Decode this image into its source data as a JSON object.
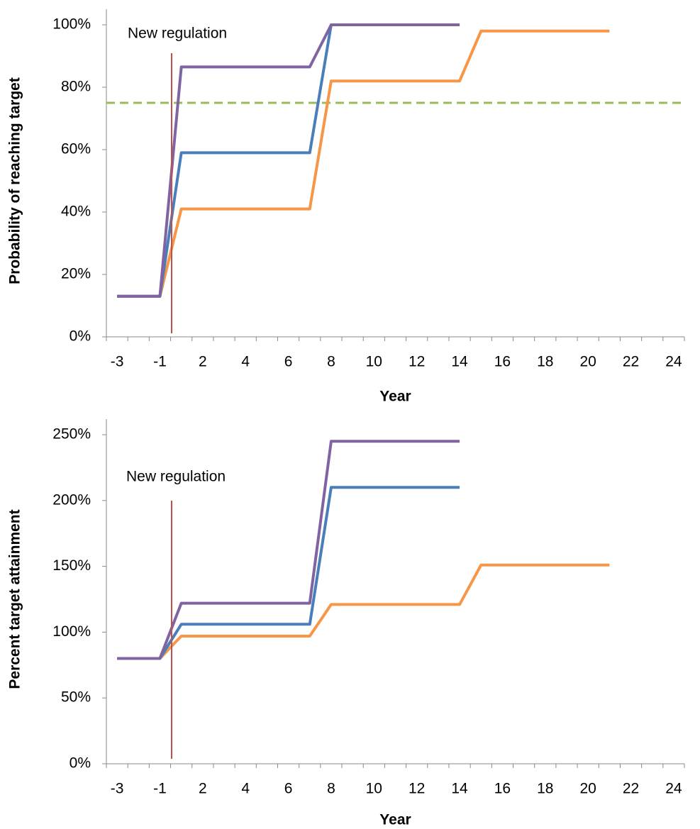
{
  "chart_data": [
    {
      "type": "line",
      "annotation": "New regulation",
      "annotation_color": "#c0504d",
      "x_label": "Year",
      "y_label": "Probability of reaching target",
      "categories": [
        -3,
        null,
        -1,
        null,
        2,
        null,
        4,
        null,
        6,
        null,
        8,
        null,
        10,
        null,
        12,
        null,
        14,
        null,
        16,
        null,
        18,
        null,
        20,
        null,
        22,
        null,
        24
      ],
      "ylim": [
        0,
        100
      ],
      "yticks": [
        {
          "value": 0,
          "label": "0%"
        },
        {
          "value": 20,
          "label": "20%"
        },
        {
          "value": 40,
          "label": "40%"
        },
        {
          "value": 60,
          "label": "60%"
        },
        {
          "value": 80,
          "label": "80%"
        },
        {
          "value": 100,
          "label": "100%"
        }
      ],
      "reference_line": {
        "value": 75,
        "color": "#9bbb59",
        "style": "dashed"
      },
      "series": [
        {
          "color": "#f79646",
          "values": [
            13,
            13,
            13,
            41,
            41,
            41,
            41,
            41,
            41,
            41,
            82,
            82,
            82,
            82,
            82,
            82,
            82,
            98,
            98,
            98,
            98,
            98,
            98,
            98,
            null,
            null,
            null
          ]
        },
        {
          "color": "#4a7ebb",
          "values": [
            13,
            13,
            13,
            59,
            59,
            59,
            59,
            59,
            59,
            59,
            100,
            100,
            100,
            100,
            100,
            100,
            100,
            null,
            null,
            null,
            null,
            null,
            null,
            null,
            null,
            null,
            null
          ]
        },
        {
          "color": "#8064a2",
          "values": [
            13,
            13,
            13,
            86.5,
            86.5,
            86.5,
            86.5,
            86.5,
            86.5,
            86.5,
            100,
            100,
            100,
            100,
            100,
            100,
            100,
            null,
            null,
            null,
            null,
            null,
            null,
            null,
            null,
            null,
            null
          ]
        }
      ]
    },
    {
      "type": "line",
      "annotation": "New regulation",
      "annotation_color": "#c0504d",
      "x_label": "Year",
      "y_label": "Percent target attainment",
      "categories": [
        -3,
        null,
        -1,
        null,
        2,
        null,
        4,
        null,
        6,
        null,
        8,
        null,
        10,
        null,
        12,
        null,
        14,
        null,
        16,
        null,
        18,
        null,
        20,
        null,
        22,
        null,
        24
      ],
      "ylim": [
        0,
        250
      ],
      "yticks": [
        {
          "value": 0,
          "label": "0%"
        },
        {
          "value": 50,
          "label": "50%"
        },
        {
          "value": 100,
          "label": "100%"
        },
        {
          "value": 150,
          "label": "150%"
        },
        {
          "value": 200,
          "label": "200%"
        },
        {
          "value": 250,
          "label": "250%"
        }
      ],
      "series": [
        {
          "color": "#f79646",
          "values": [
            80,
            80,
            80,
            97,
            97,
            97,
            97,
            97,
            97,
            97,
            121,
            121,
            121,
            121,
            121,
            121,
            121,
            151,
            151,
            151,
            151,
            151,
            151,
            151,
            null,
            null,
            null
          ]
        },
        {
          "color": "#4a7ebb",
          "values": [
            80,
            80,
            80,
            106,
            106,
            106,
            106,
            106,
            106,
            106,
            210,
            210,
            210,
            210,
            210,
            210,
            210,
            null,
            null,
            null,
            null,
            null,
            null,
            null,
            null,
            null,
            null
          ]
        },
        {
          "color": "#8064a2",
          "values": [
            80,
            80,
            80,
            122,
            122,
            122,
            122,
            122,
            122,
            122,
            245,
            245,
            245,
            245,
            245,
            245,
            245,
            null,
            null,
            null,
            null,
            null,
            null,
            null,
            null,
            null,
            null
          ]
        }
      ]
    }
  ]
}
